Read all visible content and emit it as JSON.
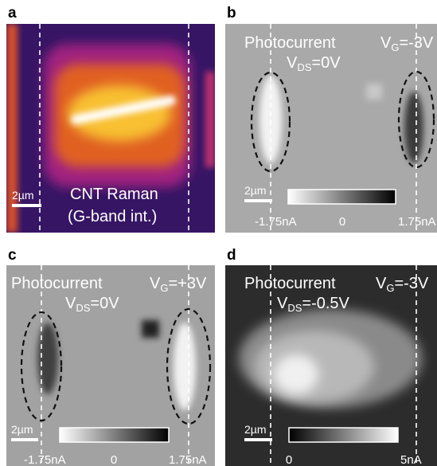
{
  "panels": [
    {
      "label": "a",
      "scale_bar": "2µm",
      "caption": [
        "CNT Raman",
        "(G-band int.)"
      ]
    },
    {
      "label": "b",
      "title": "Photocurrent",
      "gate": {
        "symbol": "V",
        "subscript": "G",
        "value": "=-3V"
      },
      "bias": {
        "symbol": "V",
        "subscript": "DS",
        "value": "=0V"
      },
      "scale_bar": "2µm",
      "colorbar_labels": [
        "-1.75nA",
        "0",
        "1.75nA"
      ]
    },
    {
      "label": "c",
      "title": "Photocurrent",
      "gate": {
        "symbol": "V",
        "subscript": "G",
        "value": "=+3V"
      },
      "bias": {
        "symbol": "V",
        "subscript": "DS",
        "value": "=0V"
      },
      "scale_bar": "2µm",
      "colorbar_labels": [
        "-1.75nA",
        "0",
        "1.75nA"
      ]
    },
    {
      "label": "d",
      "title": "Photocurrent",
      "gate": {
        "symbol": "V",
        "subscript": "G",
        "value": "=-3V"
      },
      "bias": {
        "symbol": "V",
        "subscript": "DS",
        "value": "=-0.5V"
      },
      "scale_bar": "2µm",
      "colorbar_labels": [
        "0",
        "5nA"
      ]
    }
  ]
}
